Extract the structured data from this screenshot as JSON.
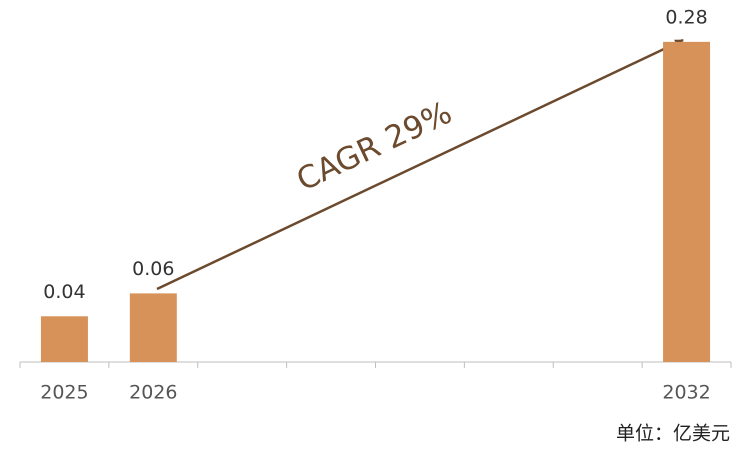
{
  "chart_data": {
    "type": "bar",
    "categories": [
      "2025",
      "2026",
      null,
      null,
      null,
      null,
      null,
      "2032"
    ],
    "values": [
      0.04,
      0.06,
      null,
      null,
      null,
      null,
      null,
      0.28
    ],
    "color": "#d79259",
    "ylim": [
      0,
      0.3
    ],
    "annotation": "CAGR 29%",
    "unit": "单位：亿美元"
  }
}
